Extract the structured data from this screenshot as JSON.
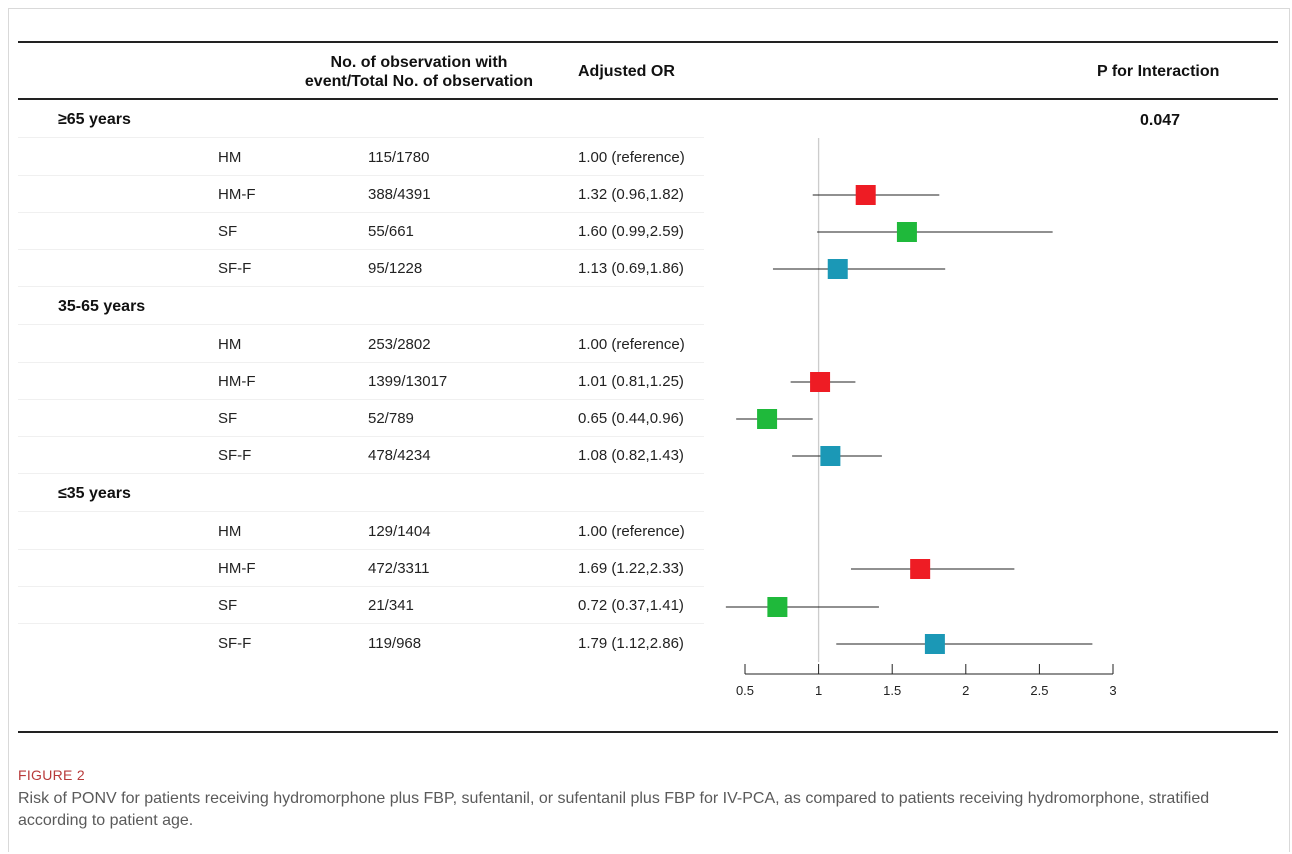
{
  "headers": {
    "observation_line1": "No. of observation with",
    "observation_line2": "event/Total No. of observation",
    "adjusted_or": "Adjusted OR",
    "p_interaction": "P for Interaction"
  },
  "p_for_interaction": "0.047",
  "figure_label": "FIGURE 2",
  "caption": "Risk of PONV for patients receiving hydromorphone plus FBP, sufentanil, or sufentanil plus FBP for IV-PCA, as compared to patients receiving hydromorphone, stratified according to patient age.",
  "colors": {
    "HM-F": "#ee1c24",
    "SF": "#1fb93b",
    "SF-F": "#1b98b6",
    "reference_line": "#cccccc",
    "ci_line": "#222222"
  },
  "chart_data": {
    "type": "forest",
    "xlim": [
      0.5,
      3
    ],
    "x_ticks": [
      0.5,
      1,
      1.5,
      2,
      2.5,
      3
    ],
    "x_tick_labels": [
      "0.5",
      "1",
      "1.5",
      "2",
      "2.5",
      "3"
    ],
    "reference_value": 1,
    "groups": [
      {
        "label": "≥65 years",
        "rows": [
          {
            "name": "HM",
            "obs": "115/1780",
            "or_text": "1.00 (reference)",
            "or": null,
            "lo": null,
            "hi": null
          },
          {
            "name": "HM-F",
            "obs": "388/4391",
            "or_text": "1.32 (0.96,1.82)",
            "or": 1.32,
            "lo": 0.96,
            "hi": 1.82
          },
          {
            "name": "SF",
            "obs": "55/661",
            "or_text": "1.60 (0.99,2.59)",
            "or": 1.6,
            "lo": 0.99,
            "hi": 2.59
          },
          {
            "name": "SF-F",
            "obs": "95/1228",
            "or_text": "1.13 (0.69,1.86)",
            "or": 1.13,
            "lo": 0.69,
            "hi": 1.86
          }
        ]
      },
      {
        "label": "35-65 years",
        "rows": [
          {
            "name": "HM",
            "obs": "253/2802",
            "or_text": "1.00 (reference)",
            "or": null,
            "lo": null,
            "hi": null
          },
          {
            "name": "HM-F",
            "obs": "1399/13017",
            "or_text": "1.01 (0.81,1.25)",
            "or": 1.01,
            "lo": 0.81,
            "hi": 1.25
          },
          {
            "name": "SF",
            "obs": "52/789",
            "or_text": "0.65 (0.44,0.96)",
            "or": 0.65,
            "lo": 0.44,
            "hi": 0.96
          },
          {
            "name": "SF-F",
            "obs": "478/4234",
            "or_text": "1.08 (0.82,1.43)",
            "or": 1.08,
            "lo": 0.82,
            "hi": 1.43
          }
        ]
      },
      {
        "label": "≤35 years",
        "rows": [
          {
            "name": "HM",
            "obs": "129/1404",
            "or_text": "1.00 (reference)",
            "or": null,
            "lo": null,
            "hi": null
          },
          {
            "name": "HM-F",
            "obs": "472/3311",
            "or_text": "1.69 (1.22,2.33)",
            "or": 1.69,
            "lo": 1.22,
            "hi": 2.33
          },
          {
            "name": "SF",
            "obs": "21/341",
            "or_text": "0.72 (0.37,1.41)",
            "or": 0.72,
            "lo": 0.37,
            "hi": 1.41
          },
          {
            "name": "SF-F",
            "obs": "119/968",
            "or_text": "1.79 (1.12,2.86)",
            "or": 1.79,
            "lo": 1.12,
            "hi": 2.86
          }
        ]
      }
    ]
  }
}
